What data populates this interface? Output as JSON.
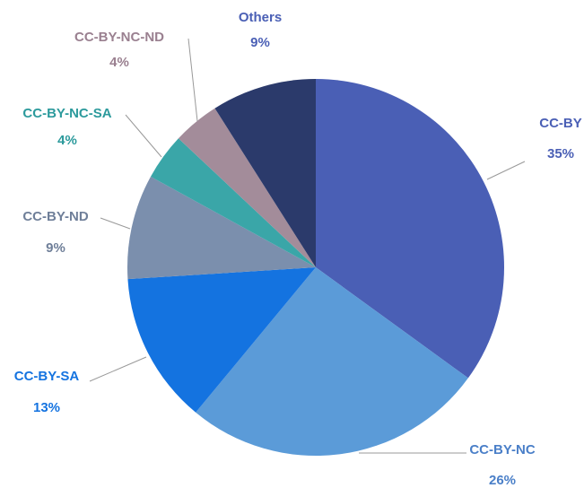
{
  "chart_data": {
    "type": "pie",
    "categories": [
      "CC-BY",
      "CC-BY-NC",
      "CC-BY-SA",
      "CC-BY-ND",
      "CC-BY-NC-SA",
      "CC-BY-NC-ND",
      "Others"
    ],
    "values": [
      35,
      26,
      13,
      9,
      4,
      4,
      9
    ],
    "value_labels": [
      "35%",
      "26%",
      "13%",
      "9%",
      "4%",
      "4%",
      "9%"
    ],
    "colors": [
      "#4a5fb5",
      "#5b9bd8",
      "#1473e0",
      "#7b8fad",
      "#3aa6a8",
      "#a38c9a",
      "#2b3a6b"
    ]
  }
}
